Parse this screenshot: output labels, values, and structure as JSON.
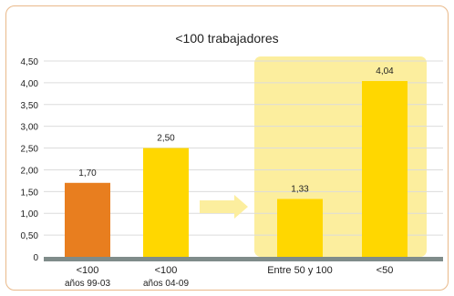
{
  "chart_data": {
    "type": "bar",
    "title": "<100 trabajadores",
    "categories": [
      [
        "<100",
        "años 99-03"
      ],
      [
        "<100",
        "años 04-09"
      ],
      [
        "Entre 50 y 100"
      ],
      [
        "<50"
      ]
    ],
    "values": [
      1.7,
      2.5,
      1.33,
      4.04
    ],
    "value_labels": [
      "1,70",
      "2,50",
      "1,33",
      "4,04"
    ],
    "bar_colors": [
      "#e87e1f",
      "#ffd700",
      "#ffd700",
      "#ffd700"
    ],
    "ylim": [
      0,
      4.5
    ],
    "yticks": [
      "0",
      "0,50",
      "1,00",
      "1,50",
      "2,00",
      "2,50",
      "3,00",
      "3,50",
      "4,00",
      "4,50"
    ],
    "ytick_values": [
      0,
      0.5,
      1.0,
      1.5,
      2.0,
      2.5,
      3.0,
      3.5,
      4.0,
      4.5
    ],
    "highlight_color": "#fcee9e",
    "arrow_color": "#fcee9e",
    "grid_color": "#dcdcdc",
    "baseline_color": "#7f8c8a",
    "grid": true,
    "xlabel": "",
    "ylabel": ""
  }
}
